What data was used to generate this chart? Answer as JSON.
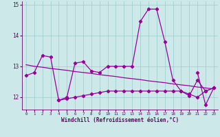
{
  "xlabel": "Windchill (Refroidissement éolien,°C)",
  "x": [
    0,
    1,
    2,
    3,
    4,
    5,
    6,
    7,
    8,
    9,
    10,
    11,
    12,
    13,
    14,
    15,
    16,
    17,
    18,
    19,
    20,
    21,
    22,
    23
  ],
  "line_trend": [
    13.05,
    13.0,
    12.97,
    12.93,
    12.9,
    12.87,
    12.83,
    12.8,
    12.77,
    12.73,
    12.7,
    12.67,
    12.63,
    12.6,
    12.57,
    12.53,
    12.5,
    12.47,
    12.43,
    12.4,
    12.37,
    12.33,
    12.3,
    12.27
  ],
  "line_main": [
    12.7,
    12.8,
    13.35,
    13.3,
    11.9,
    12.0,
    13.1,
    13.15,
    12.85,
    12.8,
    13.0,
    13.0,
    13.0,
    13.0,
    14.45,
    14.85,
    14.85,
    13.8,
    12.55,
    12.2,
    12.05,
    12.55,
    12.2,
    12.3
  ],
  "line_lower": [
    null,
    null,
    null,
    null,
    11.9,
    11.95,
    12.0,
    12.05,
    12.1,
    12.15,
    12.2,
    12.2,
    12.2,
    12.2,
    12.2,
    12.2,
    12.2,
    12.2,
    12.2,
    12.2,
    12.1,
    12.0,
    12.2,
    12.3
  ],
  "line_zigzag": [
    null,
    null,
    null,
    null,
    null,
    null,
    null,
    null,
    null,
    null,
    null,
    null,
    null,
    null,
    null,
    null,
    null,
    null,
    null,
    null,
    null,
    12.8,
    11.75,
    12.3
  ],
  "line_color": "#990099",
  "bg_color": "#cce8e8",
  "grid_color": "#99cccc",
  "tick_color": "#660066",
  "ylim_min": 11.6,
  "ylim_max": 15.1,
  "ytick_vals": [
    12,
    13,
    14,
    15
  ],
  "ytick_labels": [
    "12",
    "13",
    "14",
    "15"
  ]
}
